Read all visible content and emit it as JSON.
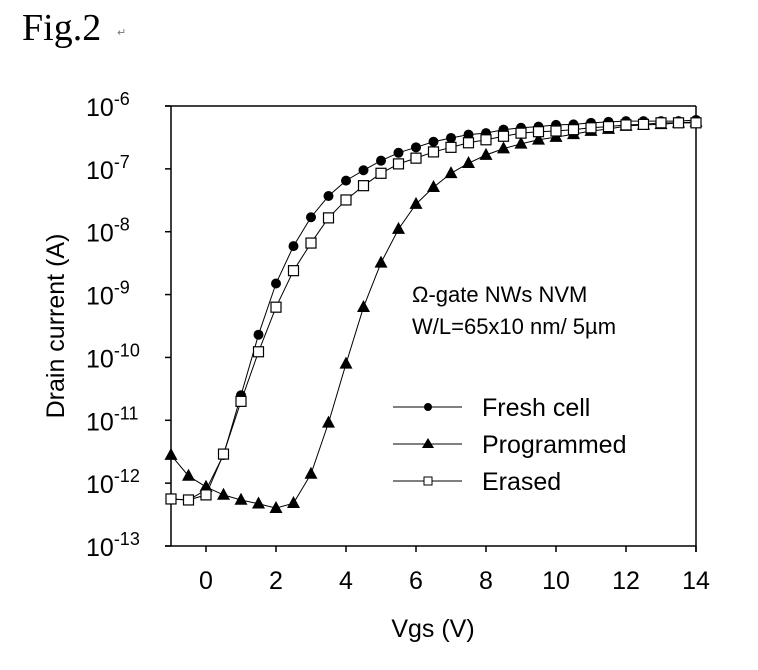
{
  "figure": {
    "label": "Fig.2",
    "paragraph_mark": "↵"
  },
  "chart_data": {
    "type": "line",
    "title": "",
    "xlabel": "Vgs (V)",
    "ylabel": "Drain current (A)",
    "xlim": [
      -1,
      14
    ],
    "ylim": [
      1e-13,
      1e-06
    ],
    "yscale": "log",
    "grid": false,
    "xticks": [
      0,
      2,
      4,
      6,
      8,
      10,
      12,
      14
    ],
    "xtick_labels": [
      "0",
      "2",
      "4",
      "6",
      "8",
      "10",
      "12",
      "14"
    ],
    "yticks": [
      -6,
      -7,
      -8,
      -9,
      -10,
      -11,
      -12,
      -13
    ],
    "ytick_labels": [
      {
        "base": "10",
        "exp": "-6"
      },
      {
        "base": "10",
        "exp": "-7"
      },
      {
        "base": "10",
        "exp": "-8"
      },
      {
        "base": "10",
        "exp": "-9"
      },
      {
        "base": "10",
        "exp": "-10"
      },
      {
        "base": "10",
        "exp": "-11"
      },
      {
        "base": "10",
        "exp": "-12"
      },
      {
        "base": "10",
        "exp": "-13"
      }
    ],
    "annotations": [
      "Ω-gate NWs NVM",
      "W/L=65x10 nm/ 5µm"
    ],
    "legend_position": "lower-right",
    "x": [
      -1,
      -0.5,
      0,
      0.5,
      1,
      1.5,
      2,
      2.5,
      3,
      3.5,
      4,
      4.5,
      5,
      5.5,
      6,
      6.5,
      7,
      7.5,
      8,
      8.5,
      9,
      9.5,
      10,
      10.5,
      11,
      11.5,
      12,
      12.5,
      13,
      13.5,
      14
    ],
    "series": [
      {
        "name": "Fresh cell",
        "marker": "filled-circle",
        "values": [
          5.6e-13,
          5.4e-13,
          7.8e-13,
          2.8e-12,
          2.5e-11,
          2.3e-10,
          1.5e-09,
          5.9e-09,
          1.7e-08,
          3.7e-08,
          6.5e-08,
          9.5e-08,
          1.35e-07,
          1.8e-07,
          2.2e-07,
          2.7e-07,
          3.1e-07,
          3.5e-07,
          3.7e-07,
          4.2e-07,
          4.5e-07,
          4.7e-07,
          5e-07,
          5.1e-07,
          5.4e-07,
          5.6e-07,
          5.75e-07,
          5.75e-07,
          5.75e-07,
          5.75e-07,
          6e-07
        ]
      },
      {
        "name": "Programmed",
        "marker": "filled-triangle",
        "values": [
          2.8e-12,
          1.3e-12,
          8.7e-13,
          6.5e-13,
          5.4e-13,
          4.7e-13,
          4e-13,
          4.8e-13,
          1.4e-12,
          9.1e-12,
          7.9e-11,
          6.3e-10,
          3.2e-09,
          1.1e-08,
          2.75e-08,
          5.1e-08,
          8.5e-08,
          1.23e-07,
          1.66e-07,
          2.1e-07,
          2.5e-07,
          2.9e-07,
          3.2e-07,
          3.55e-07,
          4e-07,
          4.3e-07,
          4.8e-07,
          5e-07,
          5.1e-07,
          5.4e-07,
          5.6e-07
        ]
      },
      {
        "name": "Erased",
        "marker": "open-square",
        "values": [
          5.6e-13,
          5.4e-13,
          6.5e-13,
          2.9e-12,
          2e-11,
          1.23e-10,
          6.3e-10,
          2.4e-09,
          6.6e-09,
          1.66e-08,
          3.2e-08,
          5.4e-08,
          8.5e-08,
          1.2e-07,
          1.48e-07,
          1.86e-07,
          2.2e-07,
          2.6e-07,
          2.9e-07,
          3.3e-07,
          3.7e-07,
          3.9e-07,
          4e-07,
          4.2e-07,
          4.5e-07,
          4.7e-07,
          5e-07,
          5.1e-07,
          5.4e-07,
          5.4e-07,
          5.4e-07
        ]
      }
    ]
  }
}
